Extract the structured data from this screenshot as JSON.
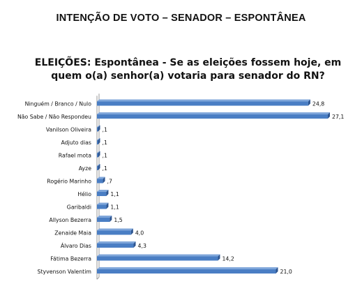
{
  "page_heading": "INTENÇÃO DE VOTO – SENADOR – ESPONTÂNEA",
  "colors": {
    "bar_front": "#4a7ec4",
    "bar_top": "#7fa6da",
    "bar_side": "#2d5590",
    "axis": "#9a9a9a",
    "text": "#111111"
  },
  "chart_data": {
    "type": "bar",
    "orientation": "horizontal",
    "title_line1": "ELEIÇÕES: Espontânea - Se as eleições fossem hoje, em",
    "title_line2": "quem o(a) senhor(a) votaria para senador do RN?",
    "categories": [
      "Ninguém / Branco / Nulo",
      "Não Sabe / Não Respondeu",
      "Vanilson Oliveira",
      "Adjuto dias",
      "Rafael mota",
      "Ayze",
      "Rogério Marinho",
      "Hélio",
      "Garibaldi",
      "Allyson Bezerra",
      "Zenaide Maia",
      "Álvaro Dias",
      "Fátima Bezerra",
      "Styvenson Valentim"
    ],
    "values": [
      24.8,
      27.1,
      0.1,
      0.1,
      0.1,
      0.1,
      0.7,
      1.1,
      1.1,
      1.5,
      4.0,
      4.3,
      14.2,
      21.0
    ],
    "value_labels": [
      "24,8",
      "27,1",
      ",1",
      ",1",
      ",1",
      ",1",
      ",7",
      "1,1",
      "1,1",
      "1,5",
      "4,0",
      "4,3",
      "14,2",
      "21,0"
    ],
    "xlim": [
      0,
      27.1
    ],
    "grid": false,
    "legend": "none",
    "style": "3d"
  }
}
